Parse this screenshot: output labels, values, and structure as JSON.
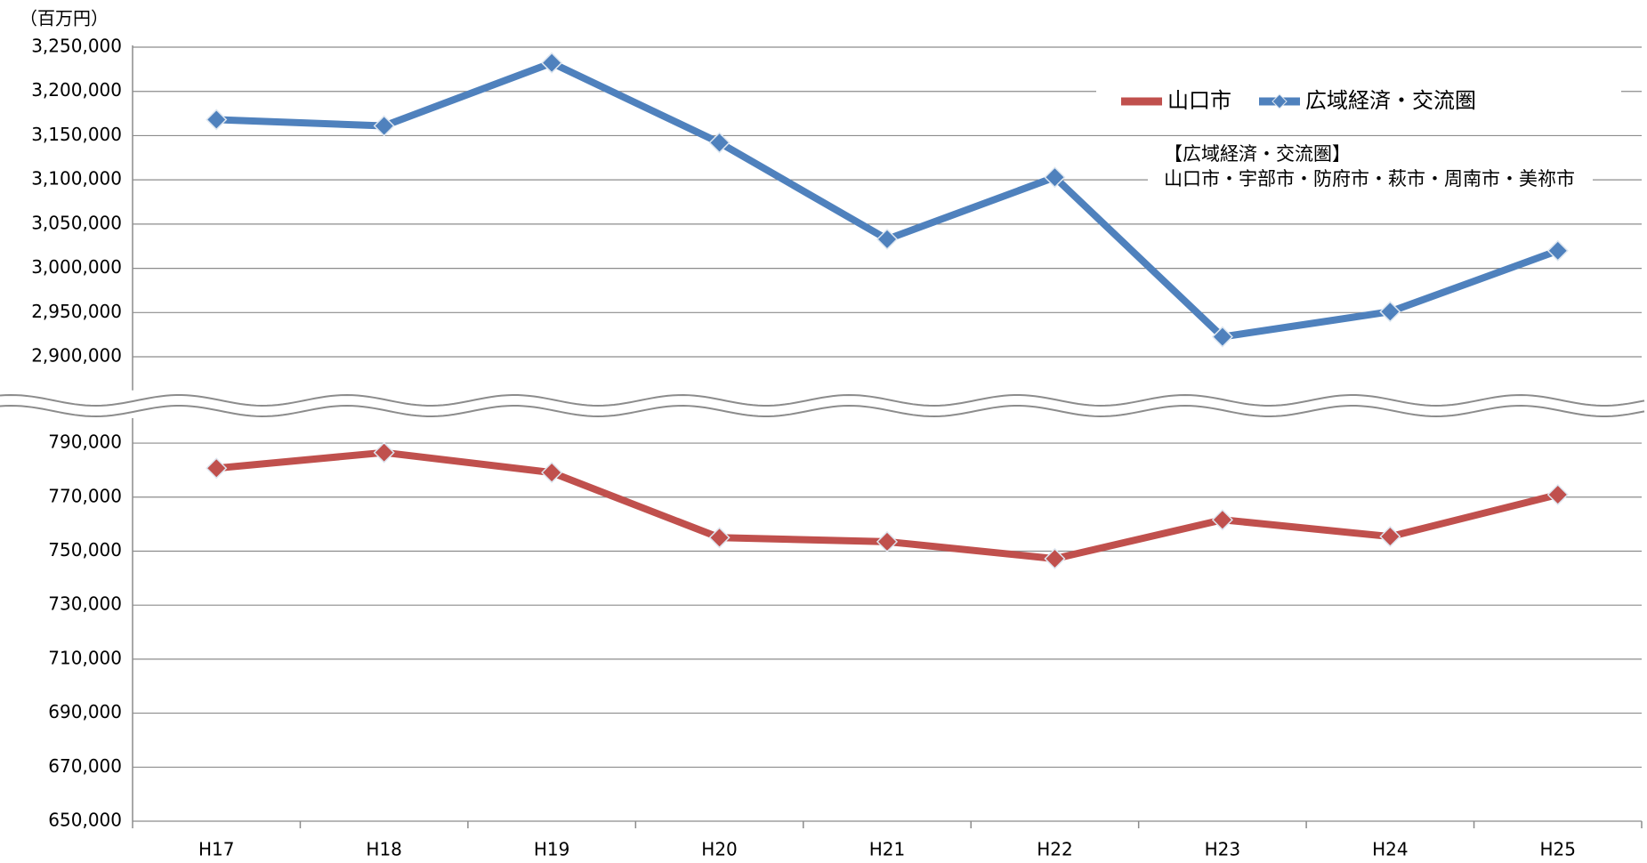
{
  "chart_data": {
    "type": "line",
    "unit_label": "（百万円）",
    "categories": [
      "H17",
      "H18",
      "H19",
      "H20",
      "H21",
      "H22",
      "H23",
      "H24",
      "H25"
    ],
    "series": [
      {
        "name": "山口市",
        "color": "#c0504d",
        "values": [
          780700,
          786500,
          779100,
          755000,
          753500,
          747200,
          761600,
          755400,
          770900
        ]
      },
      {
        "name": "広域経済・交流圏",
        "color": "#4f81bd",
        "axis": "y2",
        "values": [
          3168100,
          3161000,
          3232200,
          3142000,
          3032900,
          3102900,
          2922600,
          2951000,
          3019900
        ]
      }
    ],
    "ylim": [
      650000,
      800000
    ],
    "yticks": [
      {
        "value": 650000,
        "label": "650,000"
      },
      {
        "value": 670000,
        "label": "670,000"
      },
      {
        "value": 690000,
        "label": "690,000"
      },
      {
        "value": 710000,
        "label": "710,000"
      },
      {
        "value": 730000,
        "label": "730,000"
      },
      {
        "value": 750000,
        "label": "750,000"
      },
      {
        "value": 770000,
        "label": "770,000"
      },
      {
        "value": 790000,
        "label": "790,000"
      }
    ],
    "y2lim": [
      2860000,
      3250000
    ],
    "y2ticks": [
      {
        "value": 2900000,
        "label": "2,900,000"
      },
      {
        "value": 2950000,
        "label": "2,950,000"
      },
      {
        "value": 3000000,
        "label": "3,000,000"
      },
      {
        "value": 3050000,
        "label": "3,050,000"
      },
      {
        "value": 3100000,
        "label": "3,100,000"
      },
      {
        "value": 3150000,
        "label": "3,150,000"
      },
      {
        "value": 3200000,
        "label": "3,200,000"
      },
      {
        "value": 3250000,
        "label": "3,250,000"
      }
    ],
    "grid": true,
    "annotations": [
      "【広域経済・交流圏】",
      "山口市・宇部市・防府市・萩市・周南市・美祢市"
    ]
  }
}
